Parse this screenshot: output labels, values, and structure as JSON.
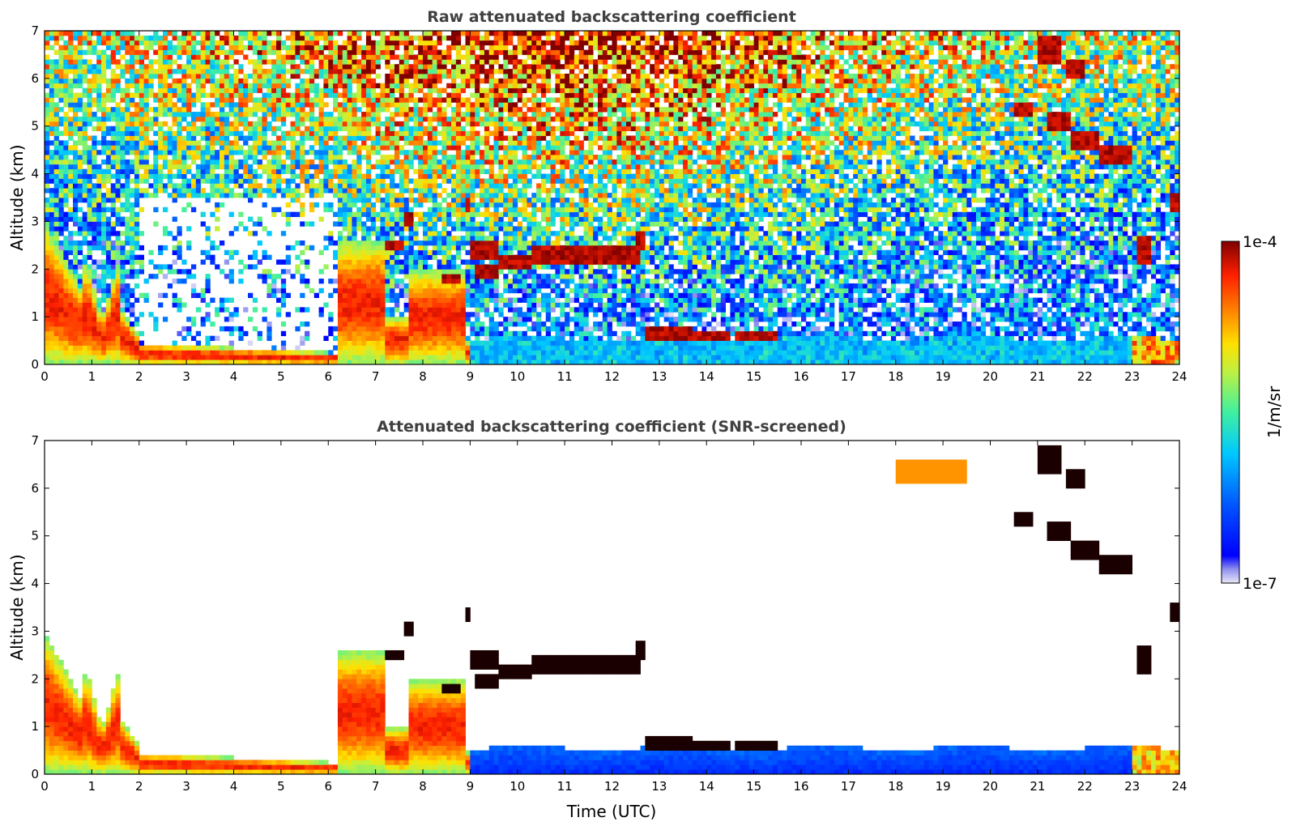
{
  "chart_data": [
    {
      "type": "heatmap",
      "title": "Raw attenuated backscattering coefficient",
      "ylabel": "Altitude (km)",
      "xlabel": "",
      "xlim": [
        0,
        24
      ],
      "ylim": [
        0,
        7
      ],
      "xticks": [
        "0",
        "1",
        "2",
        "3",
        "4",
        "5",
        "6",
        "7",
        "8",
        "9",
        "10",
        "11",
        "12",
        "13",
        "14",
        "15",
        "16",
        "17",
        "18",
        "19",
        "20",
        "21",
        "22",
        "23",
        "24"
      ],
      "yticks": [
        "0",
        "1",
        "2",
        "3",
        "4",
        "5",
        "6",
        "7"
      ],
      "screened": false
    },
    {
      "type": "heatmap",
      "title": "Attenuated backscattering coefficient (SNR-screened)",
      "ylabel": "Altitude (km)",
      "xlabel": "Time (UTC)",
      "xlim": [
        0,
        24
      ],
      "ylim": [
        0,
        7
      ],
      "xticks": [
        "0",
        "1",
        "2",
        "3",
        "4",
        "5",
        "6",
        "7",
        "8",
        "9",
        "10",
        "11",
        "12",
        "13",
        "14",
        "15",
        "16",
        "17",
        "18",
        "19",
        "20",
        "21",
        "22",
        "23",
        "24"
      ],
      "yticks": [
        "0",
        "1",
        "2",
        "3",
        "4",
        "5",
        "6",
        "7"
      ],
      "screened": true
    }
  ],
  "colorbar": {
    "label": "1/m/sr",
    "max_label": "1e-4",
    "min_label": "1e-7",
    "range": [
      1e-07,
      0.0001
    ],
    "colormap": "jet"
  },
  "colors": {
    "title": "#404040",
    "axis": "#000000",
    "background": "#ffffff"
  }
}
